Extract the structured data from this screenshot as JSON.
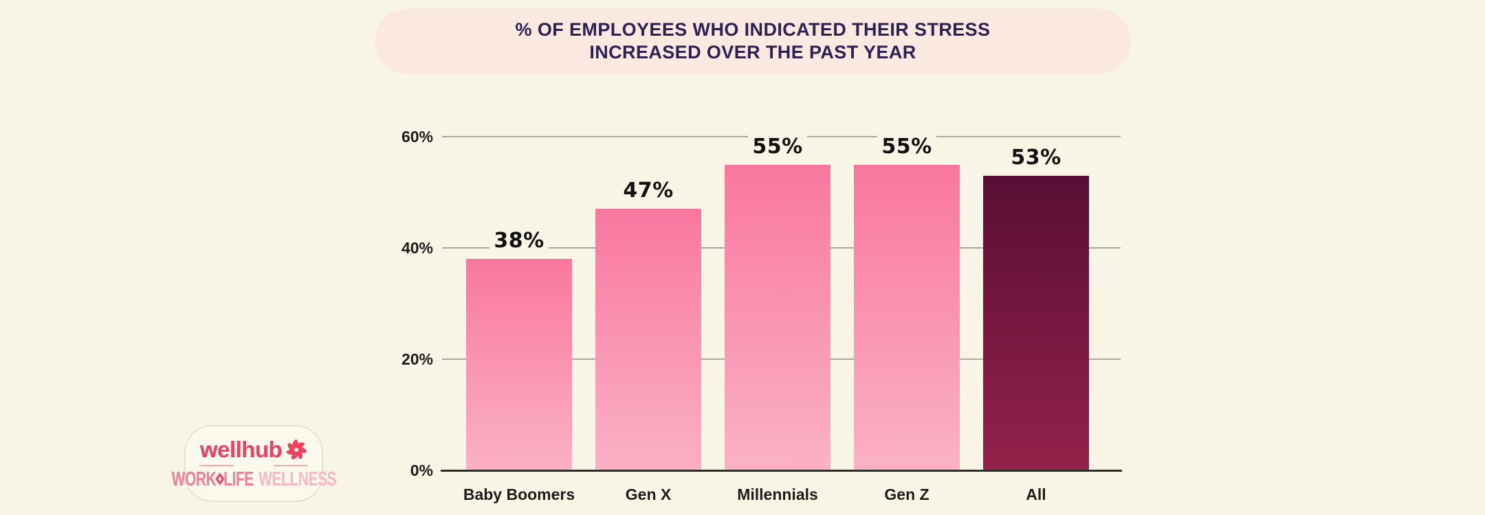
{
  "page": {
    "background": "#F8F5E6"
  },
  "title": {
    "line1": "% OF EMPLOYEES WHO INDICATED THEIR STRESS",
    "line2": "INCREASED OVER THE PAST YEAR",
    "bg": "#F9E9E0",
    "color": "#2C2151"
  },
  "chart_data": {
    "type": "bar",
    "title": "% OF EMPLOYEES WHO INDICATED THEIR STRESS INCREASED OVER THE PAST YEAR",
    "categories": [
      "Baby Boomers",
      "Gen X",
      "Millennials",
      "Gen Z",
      "All"
    ],
    "values": [
      38,
      47,
      55,
      55,
      53
    ],
    "value_labels": [
      "38%",
      "47%",
      "55%",
      "55%",
      "53%"
    ],
    "xlabel": "",
    "ylabel": "",
    "ylim": [
      0,
      60
    ],
    "yticks": [
      0,
      20,
      40,
      60
    ],
    "ytick_labels": [
      "0%",
      "20%",
      "40%",
      "60%"
    ],
    "grid": true,
    "legend": "none",
    "bar_styles": [
      "pink",
      "pink",
      "pink",
      "pink",
      "dark"
    ]
  },
  "colors": {
    "pink_top": "#F9779F",
    "pink_bottom": "#FBB1C6",
    "dark_top": "#5A0E35",
    "dark_bottom": "#93224A",
    "gridline": "#A9A8A1",
    "baseline": "#2B2B28",
    "tick_label": "#1C1C1A",
    "value_label": "#121210",
    "category_label": "#1C1C1A"
  },
  "logo": {
    "brand": "wellhub",
    "icon": "pinwheel-flower-icon",
    "word1": "WORK",
    "word2": "LIFE",
    "word3": "WELLNESS",
    "brand_color": "#F23E5F",
    "word12_color": "#F27D97",
    "word3_color": "#F8B7C5",
    "divider_color": "#F2A8B6",
    "diamond_color": "#E84A6D"
  }
}
